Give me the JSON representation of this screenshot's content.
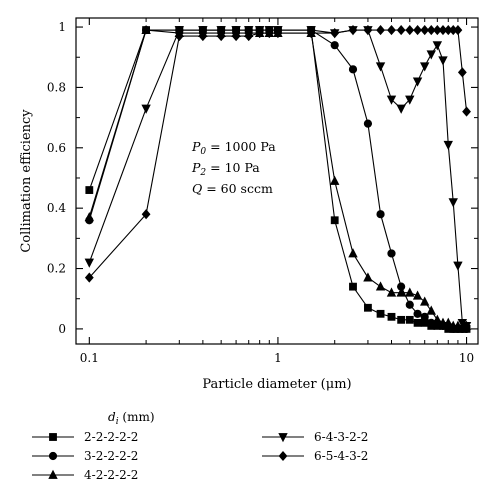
{
  "chart_data": {
    "type": "line",
    "xscale": "log",
    "xlabel": "Particle diameter (μm)",
    "ylabel": "Collimation efficiency",
    "xlim": [
      0.085,
      11.5
    ],
    "ylim": [
      -0.05,
      1.03
    ],
    "xticks": [
      0.1,
      1,
      10
    ],
    "xtick_labels": [
      "0.1",
      "1",
      "10"
    ],
    "yticks": [
      0,
      0.2,
      0.4,
      0.6,
      0.8,
      1
    ],
    "ytick_labels": [
      "0",
      "0.2",
      "0.4",
      "0.6",
      "0.8",
      "1"
    ],
    "grid": false,
    "legend_title": "d_i (mm)",
    "legend_position": "below plot",
    "annotations": [
      {
        "symbol": "P",
        "sub": "0",
        "value": "1000 Pa"
      },
      {
        "symbol": "P",
        "sub": "2",
        "value": "10 Pa"
      },
      {
        "symbol": "Q",
        "sub": "",
        "value": "60 sccm"
      }
    ],
    "series": [
      {
        "name": "2-2-2-2-2",
        "marker": "square",
        "x": [
          0.1,
          0.2,
          0.3,
          0.4,
          0.5,
          0.6,
          0.7,
          0.8,
          0.9,
          1.0,
          1.5,
          2.0,
          2.5,
          3.0,
          3.5,
          4.0,
          4.5,
          5.0,
          5.5,
          6.0,
          6.5,
          7.0,
          7.5,
          8.0,
          8.5,
          9.0,
          9.5,
          10.0
        ],
        "y": [
          0.46,
          0.99,
          0.99,
          0.99,
          0.99,
          0.99,
          0.99,
          0.99,
          0.99,
          0.99,
          0.99,
          0.36,
          0.14,
          0.07,
          0.05,
          0.04,
          0.03,
          0.03,
          0.02,
          0.02,
          0.01,
          0.01,
          0.01,
          0.0,
          0.0,
          0.0,
          0.0,
          0.0
        ]
      },
      {
        "name": "3-2-2-2-2",
        "marker": "circle",
        "x": [
          0.1,
          0.2,
          0.3,
          0.4,
          0.5,
          0.6,
          0.7,
          0.8,
          0.9,
          1.0,
          1.5,
          2.0,
          2.5,
          3.0,
          3.5,
          4.0,
          4.5,
          5.0,
          5.5,
          6.0,
          6.5,
          7.0,
          7.5,
          8.0,
          8.5,
          9.0,
          9.5,
          10.0
        ],
        "y": [
          0.36,
          0.99,
          0.99,
          0.99,
          0.99,
          0.99,
          0.99,
          0.99,
          0.99,
          0.99,
          0.99,
          0.94,
          0.86,
          0.68,
          0.38,
          0.25,
          0.14,
          0.08,
          0.05,
          0.04,
          0.02,
          0.02,
          0.01,
          0.01,
          0.0,
          0.0,
          0.0,
          0.0
        ]
      },
      {
        "name": "4-2-2-2-2",
        "marker": "triangle-up",
        "x": [
          0.1,
          0.2,
          0.3,
          0.4,
          0.5,
          0.6,
          0.7,
          0.8,
          0.9,
          1.0,
          1.5,
          2.0,
          2.5,
          3.0,
          3.5,
          4.0,
          4.5,
          5.0,
          5.5,
          6.0,
          6.5,
          7.0,
          7.5,
          8.0,
          8.5,
          9.0,
          9.5,
          10.0
        ],
        "y": [
          0.37,
          0.99,
          0.98,
          0.98,
          0.98,
          0.98,
          0.98,
          0.98,
          0.98,
          0.98,
          0.98,
          0.49,
          0.25,
          0.17,
          0.14,
          0.12,
          0.12,
          0.12,
          0.11,
          0.09,
          0.06,
          0.03,
          0.02,
          0.02,
          0.01,
          0.01,
          0.01,
          0.01
        ]
      },
      {
        "name": "6-4-3-2-2",
        "marker": "triangle-down",
        "x": [
          0.1,
          0.2,
          0.3,
          0.4,
          0.5,
          0.6,
          0.7,
          0.8,
          0.9,
          1.0,
          1.5,
          2.0,
          2.5,
          3.0,
          3.5,
          4.0,
          4.5,
          5.0,
          5.5,
          6.0,
          6.5,
          7.0,
          7.5,
          8.0,
          8.5,
          9.0,
          9.5,
          10.0
        ],
        "y": [
          0.22,
          0.73,
          0.99,
          0.99,
          0.99,
          0.99,
          0.99,
          0.99,
          0.99,
          0.99,
          0.99,
          0.98,
          0.99,
          0.99,
          0.87,
          0.76,
          0.73,
          0.76,
          0.82,
          0.87,
          0.91,
          0.94,
          0.89,
          0.61,
          0.42,
          0.21,
          0.02,
          0.01
        ]
      },
      {
        "name": "6-5-4-3-2",
        "marker": "diamond",
        "x": [
          0.1,
          0.2,
          0.3,
          0.4,
          0.5,
          0.6,
          0.7,
          0.8,
          0.9,
          1.0,
          1.5,
          2.0,
          2.5,
          3.0,
          3.5,
          4.0,
          4.5,
          5.0,
          5.5,
          6.0,
          6.5,
          7.0,
          7.5,
          8.0,
          8.5,
          9.0,
          9.5,
          10.0
        ],
        "y": [
          0.17,
          0.38,
          0.97,
          0.97,
          0.97,
          0.97,
          0.97,
          0.98,
          0.98,
          0.98,
          0.98,
          0.98,
          0.99,
          0.99,
          0.99,
          0.99,
          0.99,
          0.99,
          0.99,
          0.99,
          0.99,
          0.99,
          0.99,
          0.99,
          0.99,
          0.99,
          0.85,
          0.72
        ]
      }
    ]
  }
}
